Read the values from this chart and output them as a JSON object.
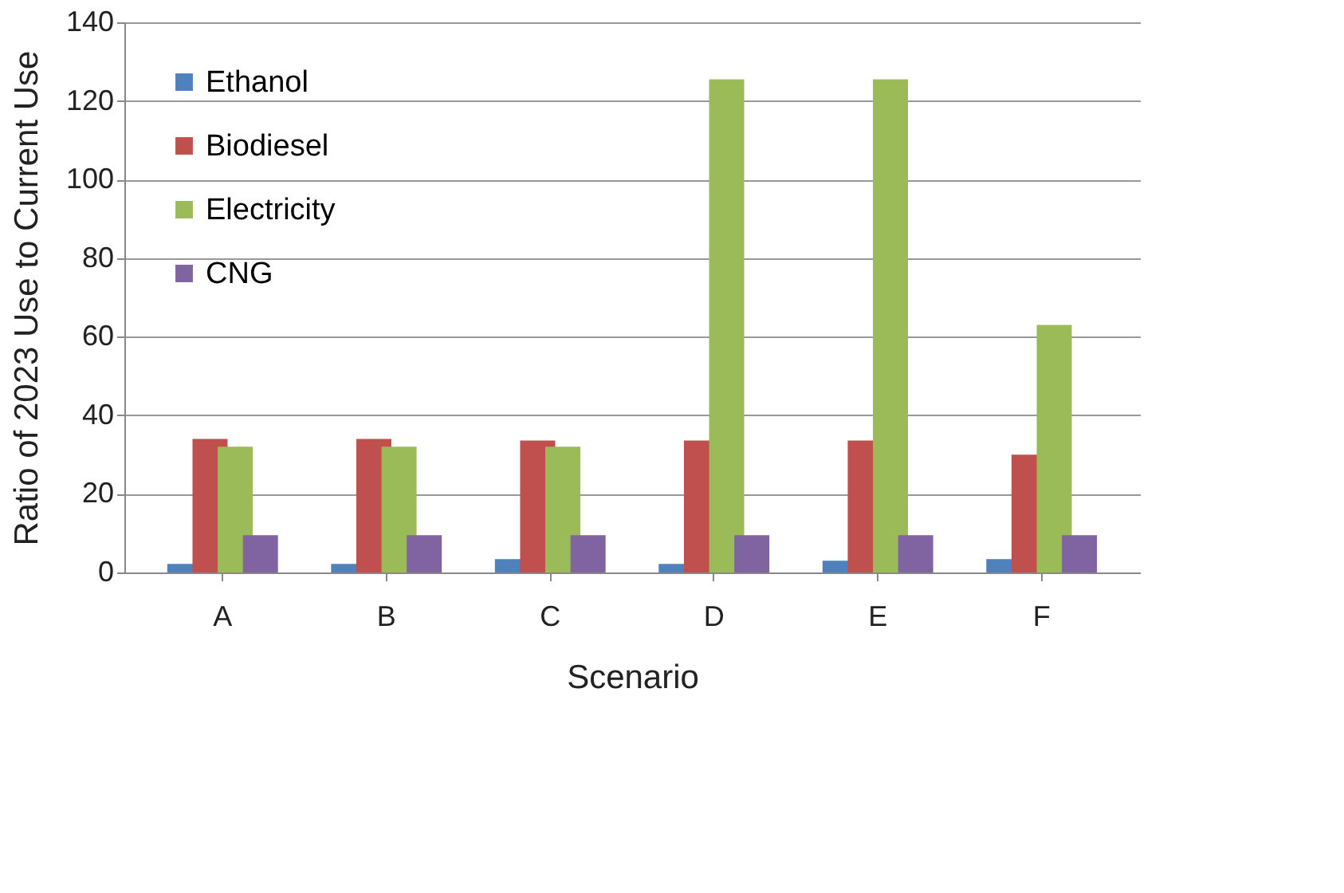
{
  "chart_data": {
    "type": "bar",
    "xlabel": "Scenario",
    "ylabel": "Ratio of 2023 Use to Current Use",
    "categories": [
      "A",
      "B",
      "C",
      "D",
      "E",
      "F"
    ],
    "series": [
      {
        "name": "Ethanol",
        "color": "#4f81bd",
        "values": [
          2.2,
          2.2,
          3.4,
          2.2,
          3.0,
          3.4
        ]
      },
      {
        "name": "Biodiesel",
        "color": "#c0504d",
        "values": [
          34,
          34,
          33.6,
          33.6,
          33.6,
          30
        ]
      },
      {
        "name": "Electricity",
        "color": "#9bbb59",
        "values": [
          32,
          32,
          32,
          125.5,
          125.5,
          63
        ]
      },
      {
        "name": "CNG",
        "color": "#8064a2",
        "values": [
          9.5,
          9.5,
          9.5,
          9.5,
          9.5,
          9.5
        ]
      }
    ],
    "ylim": [
      0,
      140
    ],
    "yticks": [
      0,
      20,
      40,
      60,
      80,
      100,
      120,
      140
    ],
    "grid": "y",
    "legend": "top left"
  }
}
